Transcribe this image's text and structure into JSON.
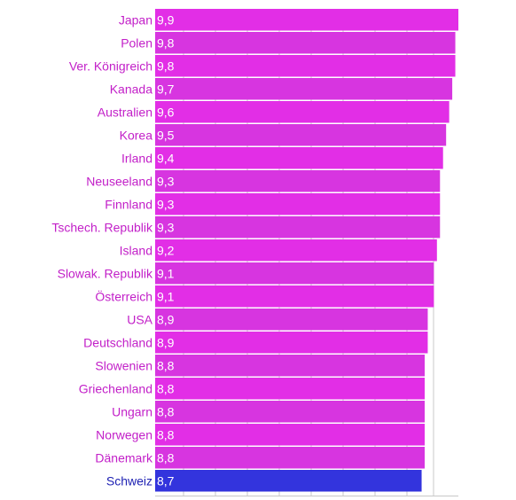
{
  "chart_data": {
    "type": "bar",
    "orientation": "horizontal",
    "categories": [
      "Japan",
      "Polen",
      "Ver. Königreich",
      "Kanada",
      "Australien",
      "Korea",
      "Irland",
      "Neuseeland",
      "Finnland",
      "Tschech. Republik",
      "Island",
      "Slowak. Republik",
      "Österreich",
      "USA",
      "Deutschland",
      "Slowenien",
      "Griechenland",
      "Ungarn",
      "Norwegen",
      "Dänemark",
      "Schweiz"
    ],
    "values": [
      9.9,
      9.8,
      9.8,
      9.7,
      9.6,
      9.5,
      9.4,
      9.3,
      9.3,
      9.3,
      9.2,
      9.1,
      9.1,
      8.9,
      8.9,
      8.8,
      8.8,
      8.8,
      8.8,
      8.8,
      8.7
    ],
    "value_labels": [
      "9,9",
      "9,8",
      "9,8",
      "9,7",
      "9,6",
      "9,5",
      "9,4",
      "9,3",
      "9,3",
      "9,3",
      "9,2",
      "9,1",
      "9,1",
      "8,9",
      "8,9",
      "8,8",
      "8,8",
      "8,8",
      "8,8",
      "8,8",
      "8,7"
    ],
    "title": "",
    "xlabel": "",
    "ylabel": "",
    "grid": true,
    "highlight_category": "Schweiz",
    "colors": {
      "bar": "#e22ee6",
      "bar_alt": "#d735e0",
      "highlight": "#3334dd",
      "label": "#c21fc8",
      "highlight_label": "#1f22b3",
      "grid": "#c8c8c8"
    }
  }
}
